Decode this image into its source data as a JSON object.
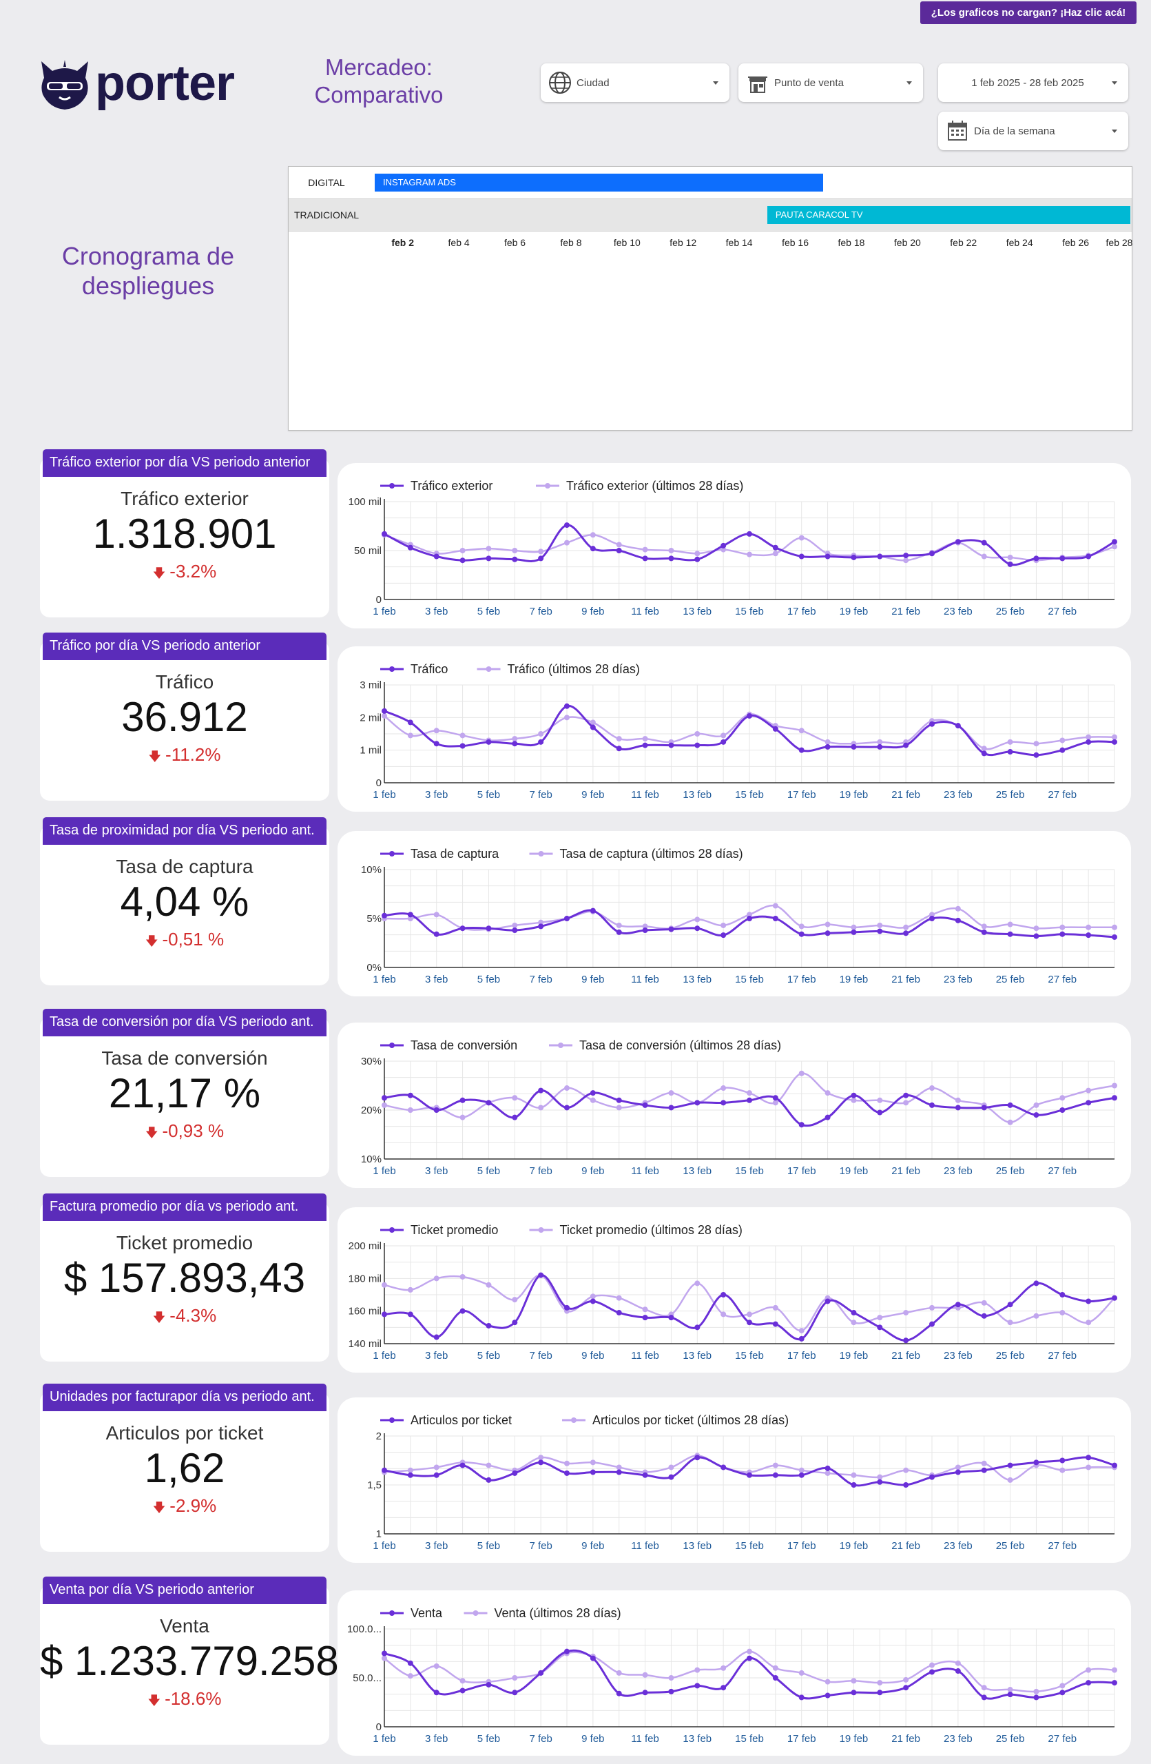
{
  "banner": {
    "label": "¿Los graficos no cargan? ¡Haz clic acá!"
  },
  "brand": {
    "name": "porter",
    "color": "#1e1848"
  },
  "page": {
    "title_line1": "Mercadeo:",
    "title_line2": "Comparativo"
  },
  "filters": {
    "ciudad": {
      "label": "Ciudad",
      "icon": "globe-icon"
    },
    "punto_venta": {
      "label": "Punto de venta",
      "icon": "store-icon"
    },
    "date_range": {
      "label": "1 feb 2025 - 28 feb 2025"
    },
    "dia_semana": {
      "label": "Día de la semana",
      "icon": "calendar-icon"
    }
  },
  "cronograma": {
    "title_line1": "Cronograma de",
    "title_line2": "despliegues",
    "rows": [
      {
        "label": "DIGITAL",
        "bar_label": "INSTAGRAM ADS",
        "start_day": 1,
        "end_day": 17,
        "color": "#0d6efd"
      },
      {
        "label": "TRADICIONAL",
        "bar_label": "PAUTA CARACOL TV",
        "start_day": 15,
        "end_day": 29,
        "color": "#00b8d4"
      }
    ],
    "ticks": [
      "feb 2",
      "feb 4",
      "feb 6",
      "feb 8",
      "feb 10",
      "feb 12",
      "feb 14",
      "feb 16",
      "feb 18",
      "feb 20",
      "feb 22",
      "feb 24",
      "feb 26",
      "feb 28"
    ]
  },
  "colors": {
    "current": "#6a2fd8",
    "previous": "#c1a6ee",
    "header": "#5b2cba",
    "negative": "#d32f2f"
  },
  "kpis": [
    {
      "header": "Tráfico exterior por día VS periodo anterior",
      "label": "Tráfico exterior",
      "value": "1.318.901",
      "delta": "-3.2%"
    },
    {
      "header": "Tráfico por día VS periodo anterior",
      "label": "Tráfico",
      "value": "36.912",
      "delta": "-11.2%"
    },
    {
      "header": "Tasa de proximidad  por día VS periodo ant.",
      "label": "Tasa de captura",
      "value": "4,04 %",
      "delta": "-0,51 %"
    },
    {
      "header": "Tasa de conversión  por día VS periodo ant.",
      "label": "Tasa de conversión",
      "value": "21,17 %",
      "delta": "-0,93 %"
    },
    {
      "header": "Factura promedio por día vs periodo ant.",
      "label": "Ticket promedio",
      "value": "$ 157.893,43",
      "delta": "-4.3%"
    },
    {
      "header": "Unidades por facturapor día vs periodo ant.",
      "label": "Articulos por ticket",
      "value": "1,62",
      "delta": "-2.9%"
    },
    {
      "header": "Venta por día VS periodo anterior",
      "label": "Venta",
      "value": "$ 1.233.779.258",
      "delta": "-18.6%"
    }
  ],
  "chart_data": [
    {
      "type": "line",
      "title": "",
      "x_tick_labels": [
        "1 feb",
        "3 feb",
        "5 feb",
        "7 feb",
        "9 feb",
        "11 feb",
        "13 feb",
        "15 feb",
        "17 feb",
        "19 feb",
        "21 feb",
        "23 feb",
        "25 feb",
        "27 feb"
      ],
      "ylim": [
        0,
        100000
      ],
      "y_ticks": [
        0,
        50000,
        100000
      ],
      "y_tick_labels": [
        "0",
        "50 mil",
        "100 mil"
      ],
      "series": [
        {
          "name": "Tráfico exterior",
          "values": [
            67000,
            53000,
            44000,
            40000,
            42000,
            41000,
            42000,
            76000,
            52000,
            50000,
            42000,
            42000,
            41000,
            55000,
            67000,
            53000,
            44000,
            44000,
            43000,
            44000,
            45000,
            47000,
            59000,
            58000,
            36000,
            42000,
            42000,
            44000,
            59000
          ]
        },
        {
          "name": "Tráfico exterior (últimos 28 días)",
          "values": [
            66000,
            56000,
            47000,
            50000,
            52000,
            50000,
            49000,
            58000,
            66000,
            56000,
            51000,
            50000,
            47000,
            51000,
            46000,
            47000,
            63000,
            47000,
            45000,
            44000,
            40000,
            48000,
            58000,
            44000,
            43000,
            40000,
            43000,
            45000,
            54000
          ]
        }
      ]
    },
    {
      "type": "line",
      "title": "",
      "x_tick_labels": [
        "1 feb",
        "3 feb",
        "5 feb",
        "7 feb",
        "9 feb",
        "11 feb",
        "13 feb",
        "15 feb",
        "17 feb",
        "19 feb",
        "21 feb",
        "23 feb",
        "25 feb",
        "27 feb"
      ],
      "ylim": [
        0,
        3000
      ],
      "y_ticks": [
        0,
        1000,
        2000,
        3000
      ],
      "y_tick_labels": [
        "0",
        "1 mil",
        "2 mil",
        "3 mil"
      ],
      "series": [
        {
          "name": "Tráfico",
          "values": [
            2200,
            1850,
            1200,
            1130,
            1250,
            1200,
            1250,
            2350,
            1700,
            1050,
            1150,
            1150,
            1150,
            1250,
            2050,
            1650,
            1000,
            1100,
            1100,
            1100,
            1150,
            1800,
            1750,
            900,
            950,
            850,
            1000,
            1250,
            1250
          ]
        },
        {
          "name": "Tráfico (últimos 28 días)",
          "values": [
            2050,
            1450,
            1600,
            1450,
            1300,
            1350,
            1500,
            2000,
            1850,
            1350,
            1350,
            1250,
            1500,
            1450,
            2100,
            1750,
            1600,
            1250,
            1200,
            1250,
            1250,
            1900,
            1750,
            1050,
            1250,
            1200,
            1300,
            1400,
            1400
          ]
        }
      ]
    },
    {
      "type": "line",
      "title": "",
      "x_tick_labels": [
        "1 feb",
        "3 feb",
        "5 feb",
        "7 feb",
        "9 feb",
        "11 feb",
        "13 feb",
        "15 feb",
        "17 feb",
        "19 feb",
        "21 feb",
        "23 feb",
        "25 feb",
        "27 feb"
      ],
      "ylim": [
        0,
        10
      ],
      "y_ticks": [
        0,
        5,
        10
      ],
      "y_tick_labels": [
        "0%",
        "5%",
        "10%"
      ],
      "series": [
        {
          "name": "Tasa de captura",
          "values": [
            5.3,
            5.4,
            3.4,
            4.0,
            4.0,
            3.8,
            4.2,
            5.0,
            5.8,
            3.6,
            3.8,
            3.9,
            4.0,
            3.3,
            5.0,
            5.0,
            3.4,
            3.5,
            3.6,
            3.7,
            3.5,
            5.0,
            4.8,
            3.6,
            3.4,
            3.2,
            3.4,
            3.3,
            3.1
          ]
        },
        {
          "name": "Tasa de captura (últimos 28 días)",
          "values": [
            5.0,
            5.0,
            5.4,
            4.0,
            3.9,
            4.3,
            4.6,
            5.0,
            5.7,
            4.3,
            4.2,
            4.0,
            4.9,
            4.3,
            5.4,
            6.3,
            4.2,
            4.4,
            4.1,
            4.3,
            4.1,
            5.4,
            6.0,
            4.2,
            4.4,
            4.0,
            4.1,
            4.1,
            4.1
          ]
        }
      ]
    },
    {
      "type": "line",
      "title": "",
      "x_tick_labels": [
        "1 feb",
        "3 feb",
        "5 feb",
        "7 feb",
        "9 feb",
        "11 feb",
        "13 feb",
        "15 feb",
        "17 feb",
        "19 feb",
        "21 feb",
        "23 feb",
        "25 feb",
        "27 feb"
      ],
      "ylim": [
        10,
        30
      ],
      "y_ticks": [
        10,
        20,
        30
      ],
      "y_tick_labels": [
        "10%",
        "20%",
        "30%"
      ],
      "series": [
        {
          "name": "Tasa de conversión",
          "values": [
            22.5,
            23.0,
            20.0,
            22.0,
            21.5,
            18.5,
            24.0,
            20.5,
            23.5,
            22.0,
            21.0,
            20.5,
            21.5,
            21.5,
            22.0,
            22.5,
            17.0,
            18.5,
            23.0,
            19.5,
            23.0,
            21.0,
            20.5,
            20.5,
            21.0,
            19.0,
            20.0,
            21.5,
            22.5
          ]
        },
        {
          "name": "Tasa de conversión (últimos 28 días)",
          "values": [
            21.0,
            20.0,
            20.5,
            18.5,
            21.5,
            22.5,
            20.5,
            24.5,
            22.0,
            20.5,
            21.5,
            23.5,
            21.5,
            24.5,
            23.5,
            21.5,
            27.5,
            23.5,
            22.0,
            22.0,
            21.5,
            24.5,
            22.0,
            21.0,
            17.5,
            21.0,
            22.5,
            24.0,
            25.0
          ]
        }
      ]
    },
    {
      "type": "line",
      "title": "",
      "x_tick_labels": [
        "1 feb",
        "3 feb",
        "5 feb",
        "7 feb",
        "9 feb",
        "11 feb",
        "13 feb",
        "15 feb",
        "17 feb",
        "19 feb",
        "21 feb",
        "23 feb",
        "25 feb",
        "27 feb"
      ],
      "ylim": [
        140000,
        200000
      ],
      "y_ticks": [
        140000,
        160000,
        180000,
        200000
      ],
      "y_tick_labels": [
        "140 mil",
        "160 mil",
        "180 mil",
        "200 mil"
      ],
      "series": [
        {
          "name": "Ticket promedio",
          "values": [
            158000,
            158000,
            144000,
            160000,
            151000,
            153000,
            182000,
            162000,
            166000,
            159000,
            156000,
            156000,
            150000,
            170000,
            153000,
            152000,
            143000,
            166000,
            159000,
            150000,
            142000,
            152000,
            164000,
            157000,
            164000,
            177000,
            170000,
            166000,
            168000
          ]
        },
        {
          "name": "Ticket promedio (últimos 28 días)",
          "values": [
            176000,
            173000,
            180000,
            181000,
            176000,
            167000,
            182000,
            160000,
            169000,
            168000,
            161000,
            158000,
            177000,
            158000,
            158000,
            162000,
            148000,
            168000,
            153000,
            156000,
            159000,
            162000,
            162000,
            165000,
            153000,
            157000,
            159000,
            153000,
            168000
          ]
        }
      ]
    },
    {
      "type": "line",
      "title": "",
      "x_tick_labels": [
        "1 feb",
        "3 feb",
        "5 feb",
        "7 feb",
        "9 feb",
        "11 feb",
        "13 feb",
        "15 feb",
        "17 feb",
        "19 feb",
        "21 feb",
        "23 feb",
        "25 feb",
        "27 feb"
      ],
      "ylim": [
        1,
        2
      ],
      "y_ticks": [
        1,
        1.5,
        2
      ],
      "y_tick_labels": [
        "1",
        "1,5",
        "2"
      ],
      "series": [
        {
          "name": "Articulos por ticket",
          "values": [
            1.65,
            1.6,
            1.6,
            1.7,
            1.55,
            1.62,
            1.73,
            1.62,
            1.63,
            1.63,
            1.6,
            1.58,
            1.78,
            1.68,
            1.6,
            1.6,
            1.6,
            1.67,
            1.5,
            1.53,
            1.5,
            1.58,
            1.63,
            1.65,
            1.7,
            1.73,
            1.75,
            1.78,
            1.7
          ]
        },
        {
          "name": "Articulos por ticket (últimos 28 días)",
          "values": [
            1.63,
            1.65,
            1.68,
            1.73,
            1.7,
            1.65,
            1.78,
            1.72,
            1.73,
            1.68,
            1.63,
            1.68,
            1.8,
            1.68,
            1.63,
            1.7,
            1.65,
            1.62,
            1.6,
            1.58,
            1.65,
            1.6,
            1.68,
            1.72,
            1.55,
            1.7,
            1.65,
            1.68,
            1.68
          ]
        }
      ]
    },
    {
      "type": "line",
      "title": "",
      "x_tick_labels": [
        "1 feb",
        "3 feb",
        "5 feb",
        "7 feb",
        "9 feb",
        "11 feb",
        "13 feb",
        "15 feb",
        "17 feb",
        "19 feb",
        "21 feb",
        "23 feb",
        "25 feb",
        "27 feb"
      ],
      "ylim": [
        0,
        100000
      ],
      "y_ticks": [
        0,
        50000,
        100000
      ],
      "y_tick_labels": [
        "0",
        "50.0...",
        "100.0..."
      ],
      "series": [
        {
          "name": "Venta",
          "values": [
            75000,
            65000,
            35000,
            37000,
            43000,
            35000,
            55000,
            77000,
            70000,
            34000,
            35000,
            36000,
            42000,
            40000,
            70000,
            50000,
            30000,
            32000,
            35000,
            35000,
            40000,
            56000,
            57000,
            30000,
            33000,
            30000,
            35000,
            45000,
            45000
          ]
        },
        {
          "name": "Venta (últimos 28 días)",
          "values": [
            70000,
            52000,
            62000,
            47000,
            46000,
            50000,
            55000,
            75000,
            72000,
            55000,
            53000,
            50000,
            58000,
            60000,
            77000,
            60000,
            55000,
            46000,
            47000,
            45000,
            48000,
            63000,
            65000,
            40000,
            38000,
            36000,
            42000,
            58000,
            58000
          ]
        }
      ]
    }
  ]
}
